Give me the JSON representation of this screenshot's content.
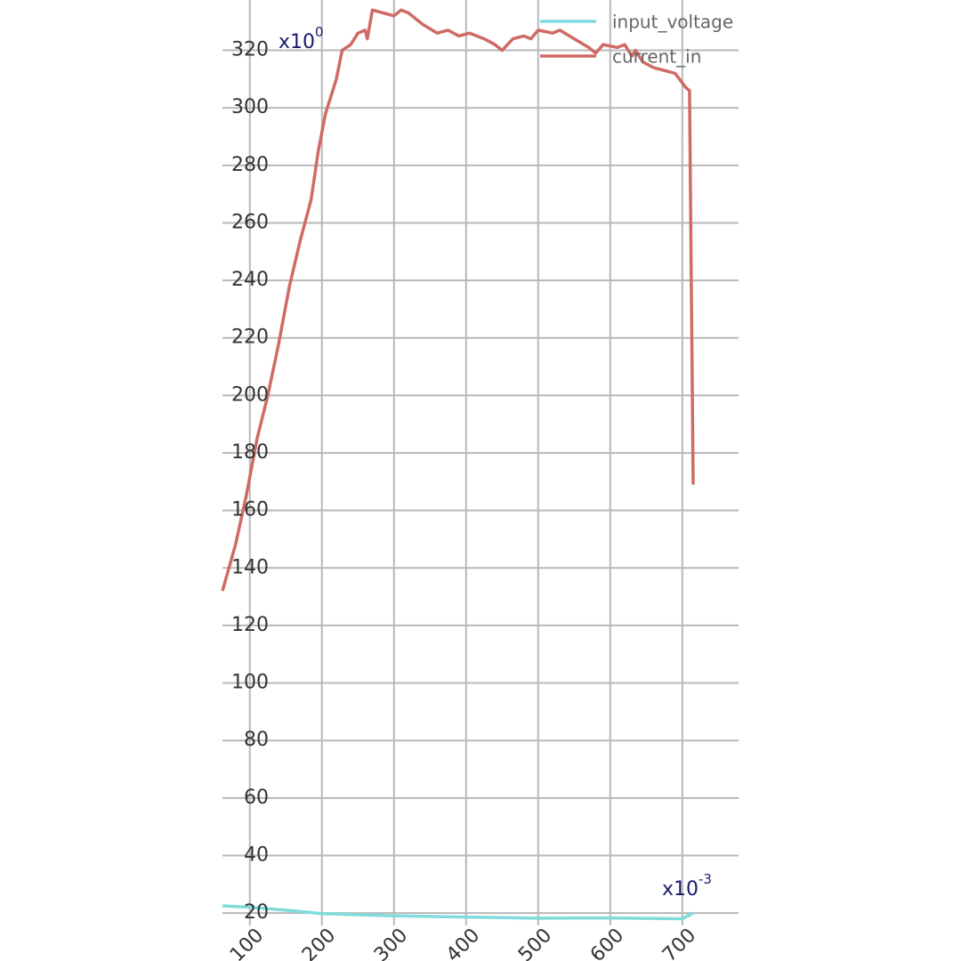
{
  "chart_data": {
    "type": "line",
    "xlim": [
      62,
      778
    ],
    "ylim": [
      15.7,
      337.5
    ],
    "xticks": [
      100,
      200,
      300,
      400,
      500,
      600,
      700
    ],
    "yticks": [
      20,
      40,
      60,
      80,
      100,
      120,
      140,
      160,
      180,
      200,
      220,
      240,
      260,
      280,
      300,
      320
    ],
    "grid": true,
    "legend": "top-right",
    "y_annotation": {
      "text": "x10",
      "exponent": "0"
    },
    "x_annotation": {
      "text": "x10",
      "exponent": "-3"
    },
    "series": [
      {
        "name": "input_voltage",
        "color": "#7fdcdc",
        "x": [
          62,
          100,
          150,
          200,
          300,
          400,
          500,
          600,
          700,
          715
        ],
        "values": [
          22.5,
          22,
          21,
          19.8,
          19,
          18.6,
          18.2,
          18.3,
          18,
          20
        ]
      },
      {
        "name": "current_in",
        "color": "#d06a64",
        "x": [
          62,
          80,
          95,
          110,
          125,
          140,
          155,
          170,
          185,
          195,
          205,
          220,
          228,
          240,
          250,
          260,
          263,
          270,
          285,
          300,
          310,
          320,
          340,
          360,
          375,
          390,
          405,
          425,
          440,
          450,
          465,
          480,
          490,
          500,
          520,
          530,
          550,
          570,
          580,
          590,
          610,
          620,
          630,
          635,
          645,
          660,
          675,
          690,
          705,
          710,
          715
        ],
        "values": [
          132,
          148,
          165,
          185,
          200,
          218,
          238,
          254,
          268,
          285,
          298,
          310,
          320,
          322,
          326,
          327,
          324,
          334,
          333,
          332,
          334,
          333,
          329,
          326,
          327,
          325,
          326,
          324,
          322,
          320,
          324,
          325,
          324,
          327,
          326,
          327,
          324,
          321,
          319,
          322,
          321,
          322,
          318,
          320,
          316,
          314,
          313,
          312,
          307,
          306,
          169
        ]
      }
    ]
  }
}
